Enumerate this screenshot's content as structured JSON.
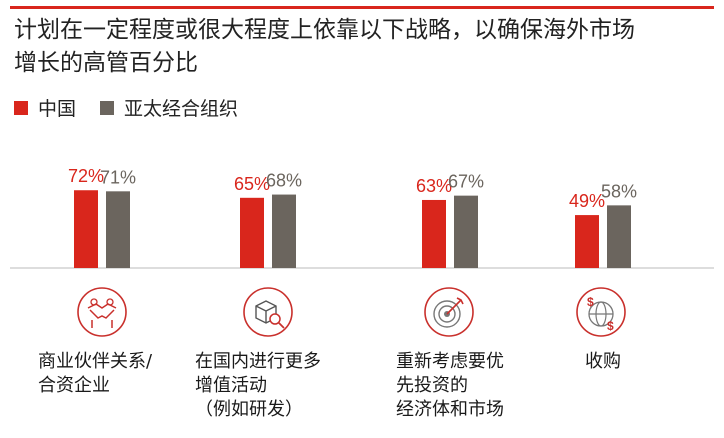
{
  "title_lines": [
    "计划在一定程度或很大程度上依靠以下战略，以确保海外市场",
    "增长的高管百分比"
  ],
  "colors": {
    "china": "#d9261c",
    "apac": "#6b655e",
    "accent": "#d9261c",
    "axis": "#bbbbbb"
  },
  "chart_data": {
    "type": "bar",
    "categories": [
      [
        "商业伙伴关系/",
        "合资企业"
      ],
      [
        "在国内进行更多",
        "增值活动",
        "（例如研发）"
      ],
      [
        "重新考虑要优",
        "先投资的",
        "经济体和市场"
      ],
      [
        "收购"
      ]
    ],
    "series": [
      {
        "name": "中国",
        "values": [
          72,
          65,
          63,
          49
        ],
        "labels": [
          "72%",
          "65%",
          "63%",
          "49%"
        ]
      },
      {
        "name": "亚太经合组织",
        "values": [
          71,
          68,
          67,
          58
        ],
        "labels": [
          "71%",
          "68%",
          "67%",
          "58%"
        ]
      }
    ],
    "ylim": [
      0,
      100
    ],
    "icons": [
      "handshake-icon",
      "box-magnifier-icon",
      "target-icon",
      "globe-money-icon"
    ]
  }
}
